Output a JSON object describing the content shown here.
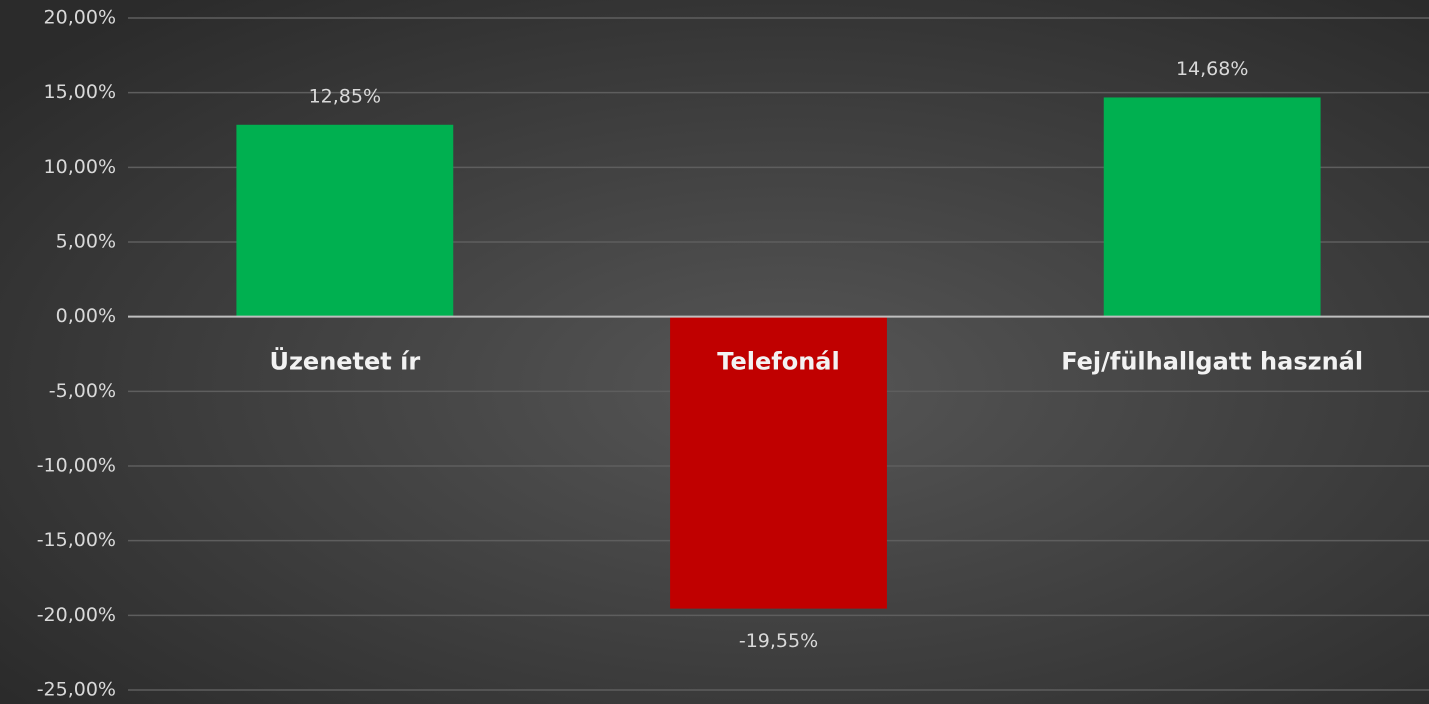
{
  "chart_data": {
    "type": "bar",
    "categories": [
      "Üzenetet ír",
      "Telefonál",
      "Fej/fülhallgatt használ"
    ],
    "values": [
      12.85,
      -19.55,
      14.68
    ],
    "value_labels": [
      "12,85%",
      "-19,55%",
      "14,68%"
    ],
    "colors": [
      "#00b050",
      "#c00000",
      "#00b050"
    ],
    "ylim": [
      -25,
      20
    ],
    "yticks": [
      {
        "value": -25,
        "label": "-25,00%"
      },
      {
        "value": -20,
        "label": "-20,00%"
      },
      {
        "value": -15,
        "label": "-15,00%"
      },
      {
        "value": -10,
        "label": "-10,00%"
      },
      {
        "value": -5,
        "label": "-5,00%"
      },
      {
        "value": 0,
        "label": "0,00%"
      },
      {
        "value": 5,
        "label": "5,00%"
      },
      {
        "value": 10,
        "label": "10,00%"
      },
      {
        "value": 15,
        "label": "15,00%"
      },
      {
        "value": 20,
        "label": "20,00%"
      }
    ],
    "grid": true
  }
}
